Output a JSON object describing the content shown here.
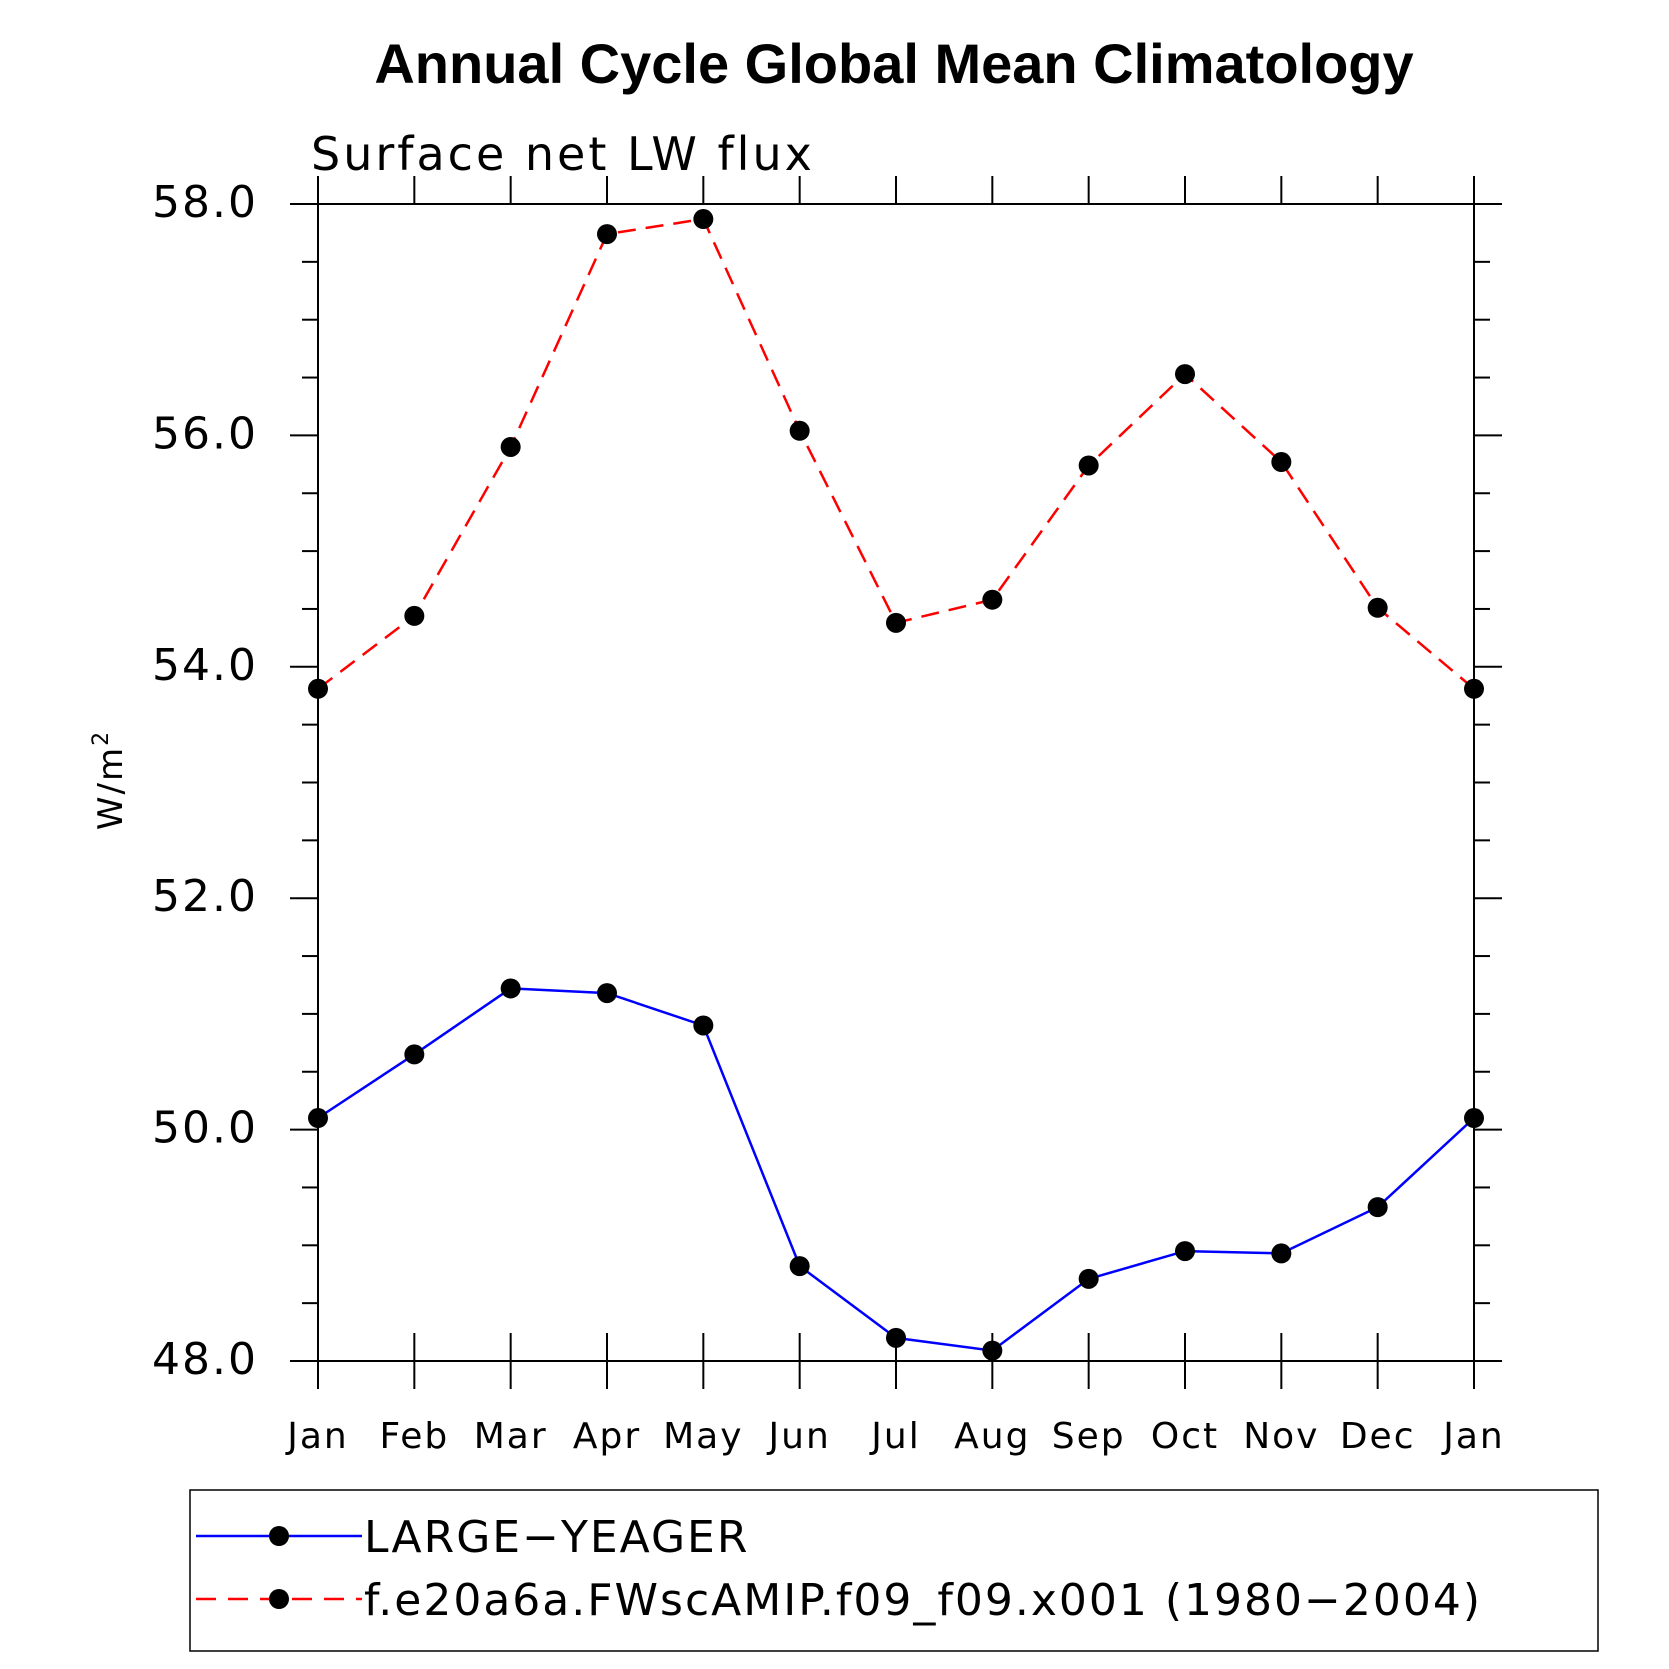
{
  "chart_data": {
    "type": "line",
    "title": "Annual Cycle Global Mean Climatology",
    "subtitle": "Surface net LW flux",
    "ylabel": "W/m",
    "ylabel_superscript": "2",
    "xlabel": "",
    "ylim": [
      48.0,
      58.0
    ],
    "yticks": [
      "48.0",
      "50.0",
      "52.0",
      "54.0",
      "56.0",
      "58.0"
    ],
    "categories": [
      "Jan",
      "Feb",
      "Mar",
      "Apr",
      "May",
      "Jun",
      "Jul",
      "Aug",
      "Sep",
      "Oct",
      "Nov",
      "Dec",
      "Jan"
    ],
    "grid": false,
    "legend_position": "bottom",
    "series": [
      {
        "name": "LARGE−YEAGER",
        "color": "#0000ff",
        "style": "solid",
        "marker": "filled-circle",
        "values": [
          50.1,
          50.65,
          51.22,
          51.18,
          50.9,
          48.82,
          48.2,
          48.09,
          48.71,
          48.95,
          48.93,
          49.33,
          50.1
        ]
      },
      {
        "name": "f.e20a6a.FWscAMIP.f09_f09.x001 (1980−2004)",
        "color": "#ff0000",
        "style": "dashed",
        "marker": "filled-circle",
        "values": [
          53.81,
          54.44,
          55.9,
          57.74,
          57.87,
          56.04,
          54.38,
          54.58,
          55.74,
          56.53,
          55.77,
          54.51,
          53.81
        ]
      }
    ]
  }
}
